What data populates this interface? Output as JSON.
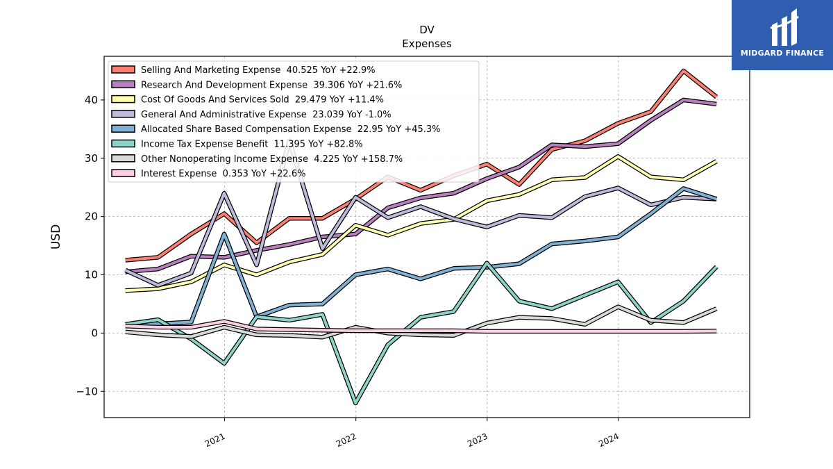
{
  "logo": {
    "text": "MIDGARD FINANCE",
    "background": "#2f5eb0"
  },
  "chart_data": {
    "type": "line",
    "title": "DV",
    "subtitle": "Expenses",
    "ylabel": "USD",
    "xlabel": "",
    "ylim": [
      -14.5,
      47.5
    ],
    "yticks": [
      -10,
      0,
      10,
      20,
      30,
      40
    ],
    "xticks": [
      {
        "label": "2021",
        "value": "2021-01-01"
      },
      {
        "label": "2022",
        "value": "2022-01-01"
      },
      {
        "label": "2023",
        "value": "2023-01-01"
      },
      {
        "label": "2024",
        "value": "2024-01-01"
      }
    ],
    "xlim": [
      "2020-02-01",
      "2024-12-31"
    ],
    "grid": true,
    "legend_position": "top-left",
    "x": [
      "2020-03-31",
      "2020-06-30",
      "2020-09-30",
      "2020-12-31",
      "2021-03-31",
      "2021-06-30",
      "2021-09-30",
      "2021-12-31",
      "2022-03-31",
      "2022-06-30",
      "2022-09-30",
      "2022-12-31",
      "2023-03-31",
      "2023-06-30",
      "2023-09-30",
      "2023-12-31",
      "2024-03-31",
      "2024-06-30",
      "2024-09-30"
    ],
    "series": [
      {
        "name": "Selling And Marketing Expense  40.525 YoY +22.9%",
        "color": "#fa8072",
        "values": [
          12.5,
          13.0,
          17.0,
          20.5,
          15.5,
          19.7,
          19.7,
          23.0,
          26.8,
          24.5,
          27.0,
          29.0,
          25.5,
          31.5,
          33.0,
          36.0,
          38.0,
          45.0,
          40.5
        ]
      },
      {
        "name": "Research And Development Expense  39.306 YoY +21.6%",
        "color": "#b77fbd",
        "values": [
          10.5,
          11.0,
          13.2,
          13.0,
          14.2,
          15.2,
          16.5,
          17.0,
          21.5,
          23.2,
          24.0,
          26.5,
          28.5,
          32.3,
          32.0,
          32.5,
          36.5,
          40.0,
          39.3
        ]
      },
      {
        "name": "Cost Of Goods And Services Sold  29.479 YoY +11.4%",
        "color": "#ffffb3",
        "values": [
          7.3,
          7.6,
          8.8,
          11.7,
          10.0,
          12.2,
          13.5,
          18.5,
          16.8,
          18.8,
          19.5,
          22.7,
          23.8,
          26.3,
          26.7,
          30.3,
          26.8,
          26.3,
          29.5
        ]
      },
      {
        "name": "General And Administrative Expense  23.039 YoY -1.0%",
        "color": "#bebada",
        "values": [
          10.8,
          8.2,
          10.3,
          24.0,
          11.7,
          33.0,
          14.5,
          23.3,
          19.8,
          21.7,
          19.6,
          18.2,
          20.2,
          19.8,
          23.4,
          24.9,
          22.0,
          23.3,
          23.0
        ]
      },
      {
        "name": "Allocated Share Based Compensation Expense  22.95 YoY +45.3%",
        "color": "#80b1d3",
        "values": [
          1.5,
          1.6,
          1.9,
          17.0,
          2.8,
          4.8,
          5.0,
          10.0,
          11.0,
          9.3,
          11.1,
          11.3,
          11.9,
          15.3,
          15.8,
          16.5,
          20.5,
          24.8,
          23.0
        ]
      },
      {
        "name": "Income Tax Expense Benefit  11.395 YoY +82.8%",
        "color": "#8dd3c7",
        "values": [
          1.5,
          2.3,
          -1.0,
          -5.2,
          2.8,
          2.2,
          3.2,
          -12.0,
          -2.0,
          2.7,
          3.7,
          12.0,
          5.5,
          4.2,
          6.5,
          8.8,
          1.8,
          5.5,
          11.4
        ]
      },
      {
        "name": "Other Nonoperating Income Expense  4.225 YoY +158.7%",
        "color": "#d9d9d9",
        "values": [
          0.2,
          -0.3,
          -0.6,
          1.0,
          -0.3,
          -0.4,
          -0.7,
          1.0,
          0.0,
          -0.3,
          -0.4,
          1.7,
          2.7,
          2.5,
          1.5,
          4.5,
          2.2,
          1.8,
          4.2
        ]
      },
      {
        "name": "Interest Expense  0.353 YoY +22.6%",
        "color": "#fccde5",
        "values": [
          1.2,
          1.0,
          1.0,
          2.0,
          0.7,
          0.6,
          0.5,
          0.4,
          0.4,
          0.4,
          0.4,
          0.3,
          0.3,
          0.3,
          0.3,
          0.3,
          0.3,
          0.3,
          0.35
        ]
      }
    ]
  }
}
